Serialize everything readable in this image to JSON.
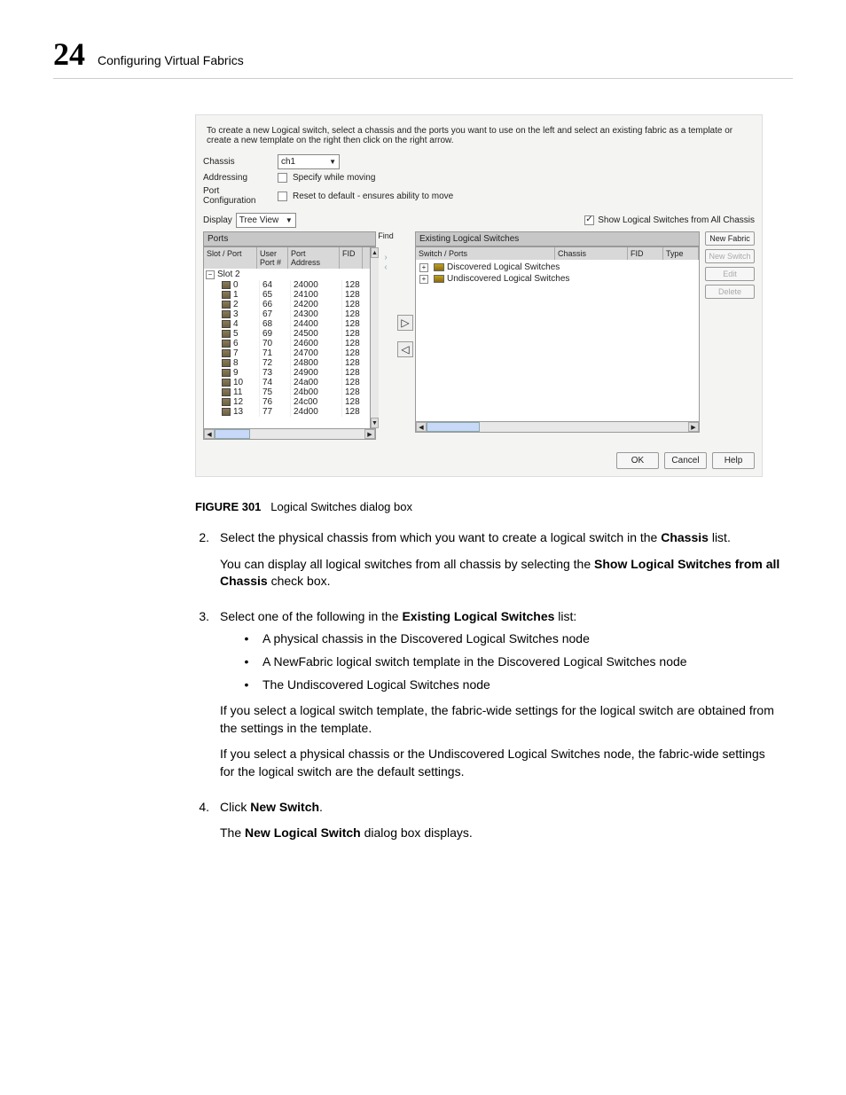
{
  "page": {
    "number": "24",
    "title": "Configuring Virtual Fabrics"
  },
  "dialog": {
    "instruction": "To create a new Logical switch, select a chassis and the ports you want to use on the left and select an existing fabric as a template or create a new template on the right then click on the right arrow.",
    "chassis_label": "Chassis",
    "chassis_value": "ch1",
    "addressing_label": "Addressing",
    "addressing_chk": "Specify while moving",
    "portcfg_label": "Port Configuration",
    "portcfg_chk": "Reset to default - ensures ability to move",
    "display_label": "Display",
    "display_value": "Tree View",
    "show_all_label": "Show Logical Switches from All Chassis",
    "ports_title": "Ports",
    "ports_cols": {
      "c1": "Slot / Port",
      "c2": "User Port #",
      "c3": "Port Address",
      "c4": "FID"
    },
    "slot_parent": "Slot 2",
    "rows": [
      {
        "p": "0",
        "u": "64",
        "a": "24000",
        "f": "128"
      },
      {
        "p": "1",
        "u": "65",
        "a": "24100",
        "f": "128"
      },
      {
        "p": "2",
        "u": "66",
        "a": "24200",
        "f": "128"
      },
      {
        "p": "3",
        "u": "67",
        "a": "24300",
        "f": "128"
      },
      {
        "p": "4",
        "u": "68",
        "a": "24400",
        "f": "128"
      },
      {
        "p": "5",
        "u": "69",
        "a": "24500",
        "f": "128"
      },
      {
        "p": "6",
        "u": "70",
        "a": "24600",
        "f": "128"
      },
      {
        "p": "7",
        "u": "71",
        "a": "24700",
        "f": "128"
      },
      {
        "p": "8",
        "u": "72",
        "a": "24800",
        "f": "128"
      },
      {
        "p": "9",
        "u": "73",
        "a": "24900",
        "f": "128"
      },
      {
        "p": "10",
        "u": "74",
        "a": "24a00",
        "f": "128"
      },
      {
        "p": "11",
        "u": "75",
        "a": "24b00",
        "f": "128"
      },
      {
        "p": "12",
        "u": "76",
        "a": "24c00",
        "f": "128"
      },
      {
        "p": "13",
        "u": "77",
        "a": "24d00",
        "f": "128"
      }
    ],
    "find_label": "Find",
    "existing_title": "Existing Logical Switches",
    "existing_cols": {
      "c1": "Switch / Ports",
      "c2": "Chassis",
      "c3": "FID",
      "c4": "Type"
    },
    "nodes": {
      "a": "Discovered Logical Switches",
      "b": "Undiscovered Logical Switches"
    },
    "buttons": {
      "new_fabric": "New Fabric",
      "new_switch": "New Switch",
      "edit": "Edit",
      "delete": "Delete",
      "ok": "OK",
      "cancel": "Cancel",
      "help": "Help"
    }
  },
  "figure": {
    "label": "FIGURE 301",
    "caption": "Logical Switches dialog box"
  },
  "body": {
    "s2_pre": "Select the physical chassis from which you want to create a logical switch in the ",
    "s2_b": "Chassis",
    "s2_post": " list.",
    "s2p_pre": "You can display all logical switches from all chassis by selecting the ",
    "s2p_b": "Show Logical Switches from all Chassis",
    "s2p_post": " check box.",
    "s3_pre": "Select one of the following in the ",
    "s3_b": "Existing Logical Switches",
    "s3_post": " list:",
    "bul1": "A physical chassis in the Discovered Logical Switches node",
    "bul2": "A NewFabric logical switch template in the Discovered Logical Switches node",
    "bul3": "The Undiscovered Logical Switches node",
    "s3p1": "If you select a logical switch template, the fabric-wide settings for the logical switch are obtained from the settings in the template.",
    "s3p2": "If you select a physical chassis or the Undiscovered Logical Switches node, the fabric-wide settings for the logical switch are the default settings.",
    "s4_pre": "Click ",
    "s4_b": "New Switch",
    "s4_post": ".",
    "s4p_pre": "The ",
    "s4p_b": "New Logical Switch",
    "s4p_post": " dialog box displays."
  }
}
